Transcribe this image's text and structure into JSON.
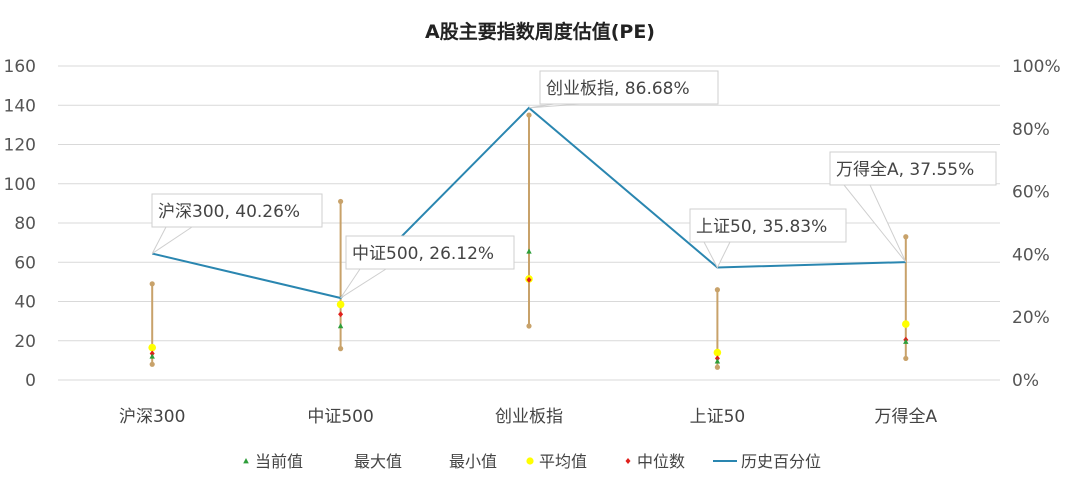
{
  "chart_data": {
    "type": "line",
    "title": "A股主要指数周度估值(PE)",
    "categories": [
      "沪深300",
      "中证500",
      "创业板指",
      "上证50",
      "万得全A"
    ],
    "y_left": {
      "ylim": [
        0,
        160
      ],
      "ticks": [
        "0",
        "20",
        "40",
        "60",
        "80",
        "100",
        "120",
        "140",
        "160"
      ]
    },
    "y_right": {
      "ylim": [
        0,
        1
      ],
      "ticks": [
        "0%",
        "20%",
        "40%",
        "60%",
        "80%",
        "100%"
      ]
    },
    "series": [
      {
        "name": "当前值",
        "axis": "left",
        "values": [
          12.0,
          27.5,
          65.5,
          9.5,
          19.5
        ],
        "color": "#2e9e3a"
      },
      {
        "name": "最大值",
        "axis": "left",
        "values": [
          49.0,
          91.0,
          135.0,
          46.0,
          73.0
        ],
        "color": "#c8a26a"
      },
      {
        "name": "最小值",
        "axis": "left",
        "values": [
          8.0,
          16.0,
          27.5,
          6.5,
          11.0
        ],
        "color": "#c8a26a"
      },
      {
        "name": "平均值",
        "axis": "left",
        "values": [
          16.5,
          38.5,
          51.5,
          14.0,
          28.5
        ],
        "color": "#ffff00"
      },
      {
        "name": "中位数",
        "axis": "left",
        "values": [
          13.5,
          33.5,
          51.0,
          11.0,
          20.5
        ],
        "color": "#e0201c"
      },
      {
        "name": "历史百分位",
        "axis": "right",
        "values": [
          0.4026,
          0.2612,
          0.8668,
          0.3583,
          0.3755
        ],
        "color": "#2a86b0"
      }
    ],
    "range_bar_color": "#c8a26a",
    "callouts": [
      "沪深300, 40.26%",
      "中证500, 26.12%",
      "创业板指, 86.68%",
      "上证50, 35.83%",
      "万得全A, 37.55%"
    ],
    "grid": true,
    "legend": "bottom"
  }
}
